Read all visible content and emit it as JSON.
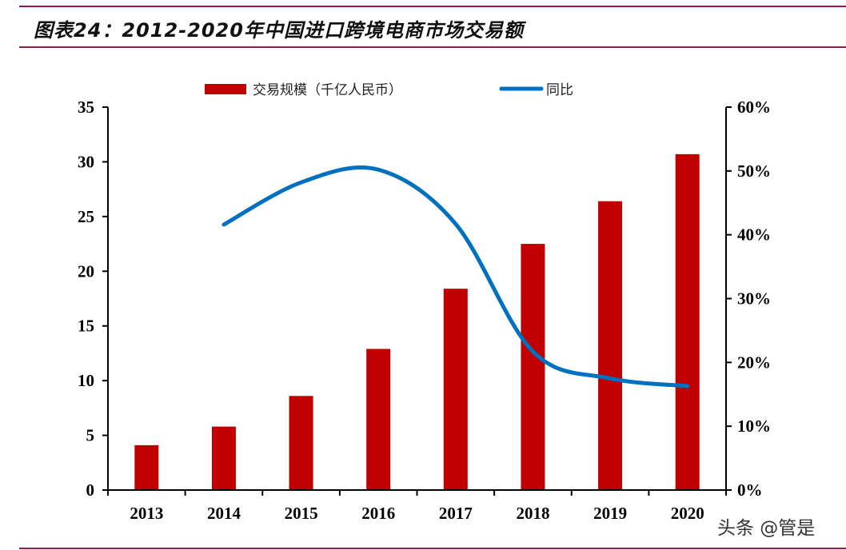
{
  "title": "图表24：2012-2020年中国进口跨境电商市场交易额",
  "watermark": "头条 @管是",
  "colors": {
    "bar": "#c00000",
    "line": "#0070c0",
    "rule": "#8b1f45"
  },
  "chart_data": {
    "type": "bar+line",
    "categories": [
      "2013",
      "2014",
      "2015",
      "2016",
      "2017",
      "2018",
      "2019",
      "2020"
    ],
    "series": [
      {
        "name": "交易规模（千亿人民币）",
        "type": "bar",
        "axis": "left",
        "values": [
          4.1,
          5.8,
          8.6,
          12.9,
          18.4,
          22.5,
          26.4,
          30.7
        ]
      },
      {
        "name": "同比",
        "type": "line",
        "axis": "right",
        "smooth": true,
        "values": [
          null,
          41.6,
          48.2,
          50.2,
          41.7,
          21.7,
          17.5,
          16.3
        ]
      }
    ],
    "ylim": [
      0,
      35
    ],
    "yticks": [
      "0",
      "5",
      "10",
      "15",
      "20",
      "25",
      "30",
      "35"
    ],
    "y2lim": [
      0,
      60
    ],
    "y2ticks": [
      "0%",
      "10%",
      "20%",
      "30%",
      "40%",
      "50%",
      "60%"
    ],
    "legend": "top",
    "grid": false
  }
}
